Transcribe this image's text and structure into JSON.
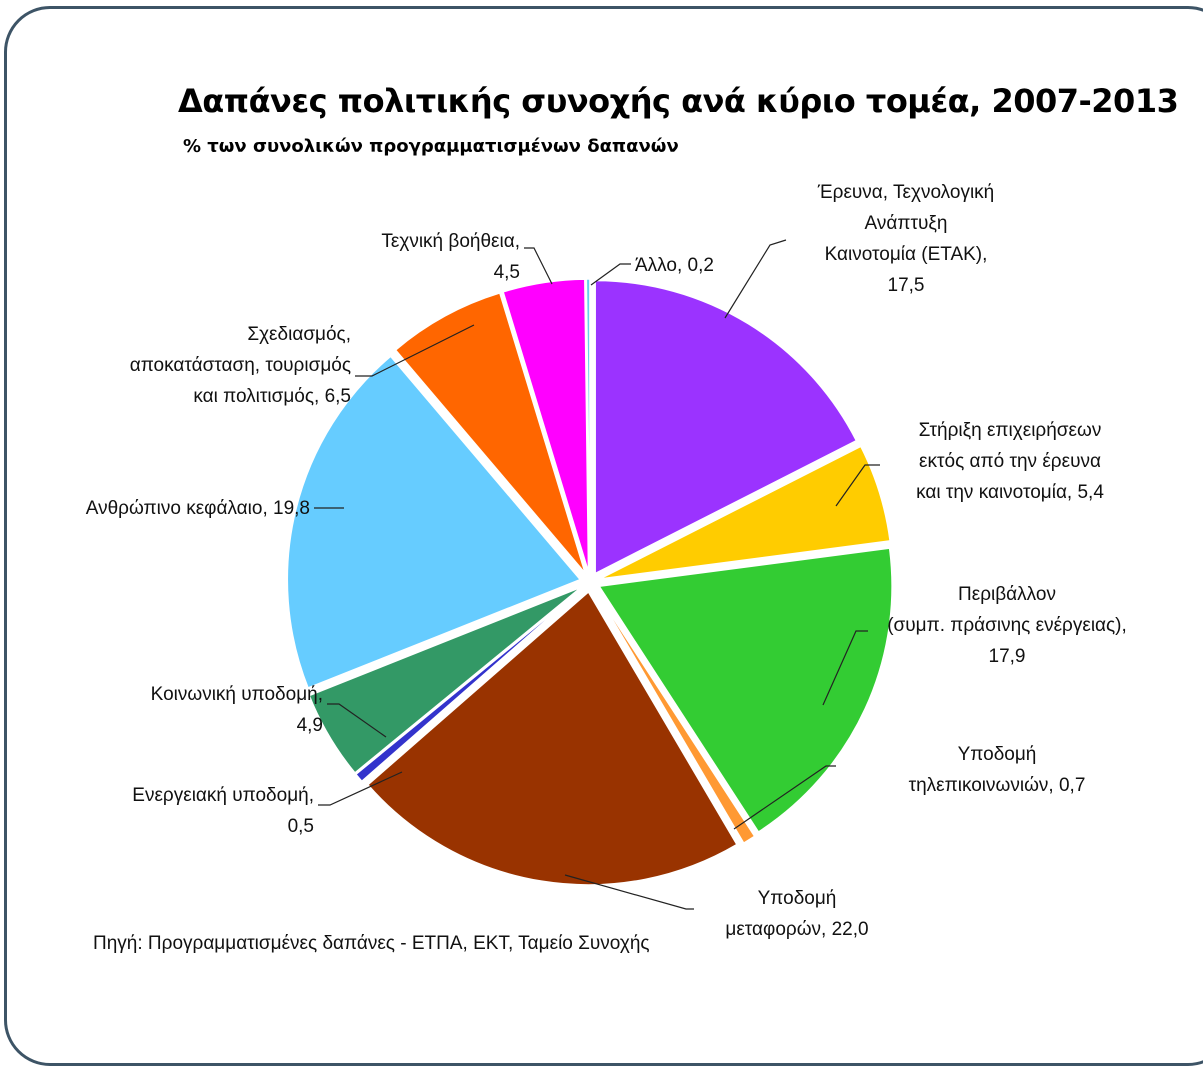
{
  "chart_data": {
    "type": "pie",
    "title": "Δαπάνες πολιτικής συνοχής ανά κύριο τομέα, 2007-2013",
    "subtitle": "% των συνολικών προγραμματισμένων δαπανών",
    "source": "Πηγή: Προγραμματισμένες δαπάνες - ΕΤΠΑ, ΕΚΤ, Ταμείο Συνοχής",
    "slices": [
      {
        "label": [
          "Έρευνα, Τεχνολογική",
          "Ανάπτυξη",
          "Καινοτομία (ΕΤΑΚ),",
          "17,5"
        ],
        "value": 17.5,
        "color": "#9b33ff"
      },
      {
        "label": [
          "Στήριξη επιχειρήσεων",
          "εκτός από την έρευνα",
          "και την καινοτομία, 5,4"
        ],
        "value": 5.4,
        "color": "#ffcc00"
      },
      {
        "label": [
          "Περιβάλλον",
          "(συμπ. πράσινης ενέργειας),",
          "17,9"
        ],
        "value": 17.9,
        "color": "#33cc33"
      },
      {
        "label": [
          "Υποδομή",
          "τηλεπικοινωνιών, 0,7"
        ],
        "value": 0.7,
        "color": "#ff9933"
      },
      {
        "label": [
          "Υποδομή",
          "μεταφορών, 22,0"
        ],
        "value": 22.0,
        "color": "#993300"
      },
      {
        "label": [
          "Ενεργειακή υποδομή,",
          "0,5"
        ],
        "value": 0.5,
        "color": "#3333cc"
      },
      {
        "label": [
          "Κοινωνική υποδομή,",
          "4,9"
        ],
        "value": 4.9,
        "color": "#339966"
      },
      {
        "label": [
          "Ανθρώπινο κεφάλαιο, 19,8"
        ],
        "value": 19.8,
        "color": "#66ccff"
      },
      {
        "label": [
          "Σχεδιασμός,",
          "αποκατάσταση, τουρισμός",
          "και πολιτισμός, 6,5"
        ],
        "value": 6.5,
        "color": "#ff6600"
      },
      {
        "label": [
          "Τεχνική βοήθεια,",
          "4,5"
        ],
        "value": 4.5,
        "color": "#ff00ff"
      },
      {
        "label": [
          "Άλλο, 0,2"
        ],
        "value": 0.2,
        "color": "#66ccee"
      }
    ]
  }
}
